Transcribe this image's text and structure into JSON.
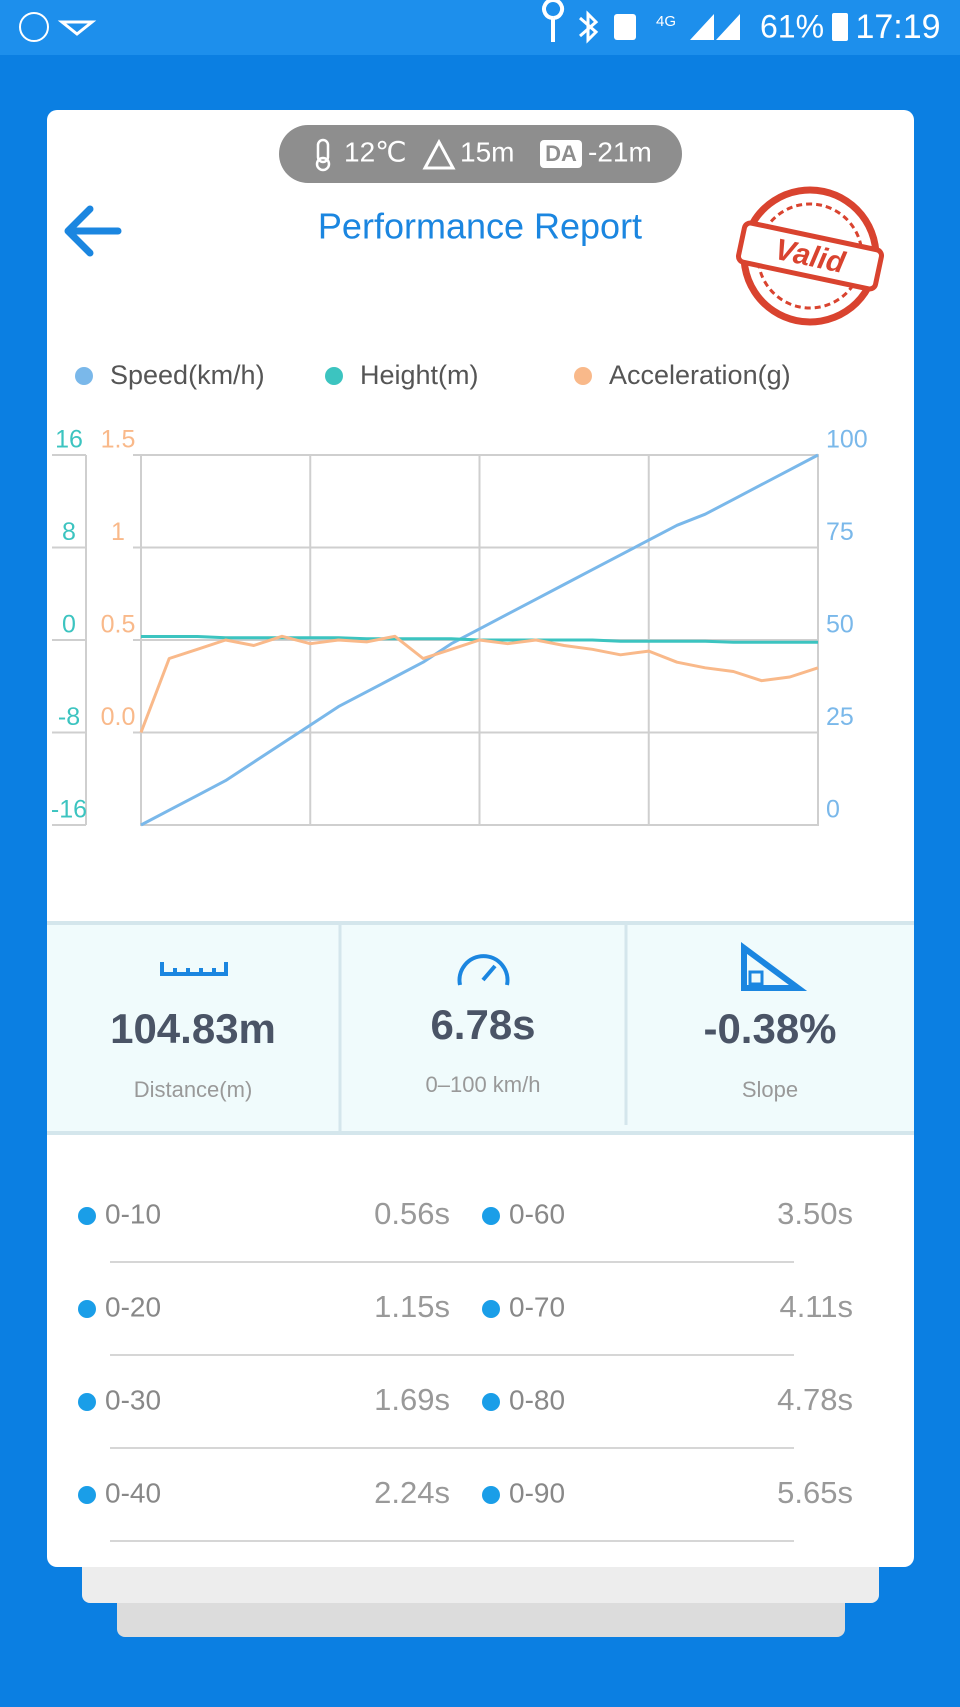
{
  "status": {
    "network": "4G",
    "battery": "61%",
    "time": "17:19"
  },
  "conditions": {
    "temperature": "12℃",
    "altitude": "15m",
    "da_label": "DA",
    "density_altitude": "-21m"
  },
  "header": {
    "title": "Performance Report",
    "stamp": "Valid"
  },
  "chart_data": {
    "type": "line",
    "ylim": [
      -16,
      16
    ],
    "yticks": [
      -16,
      -8,
      0,
      8,
      16
    ],
    "y2lim": [
      0,
      100
    ],
    "y2ticks": [
      0,
      25,
      50,
      75,
      100
    ],
    "y3lim": [
      -0.5,
      1.5
    ],
    "y3ticks": [
      {
        "value": 0,
        "label": "0.0"
      },
      0.5,
      1,
      1.5
    ],
    "grid": true,
    "series": [
      {
        "name": "Speed(km/h)",
        "color": "#7ab8ea",
        "axis": "y2",
        "values": [
          0,
          4,
          8,
          12,
          17,
          22,
          27,
          32,
          36,
          40,
          44,
          49,
          53,
          57,
          61,
          65,
          69,
          73,
          77,
          81,
          84,
          88,
          92,
          96,
          100
        ]
      },
      {
        "name": "Height(m)",
        "color": "#3cc4c0",
        "axis": "y",
        "values": [
          0.3,
          0.3,
          0.3,
          0.2,
          0.2,
          0.2,
          0.2,
          0.2,
          0.1,
          0.1,
          0.1,
          0.1,
          0,
          0,
          0,
          0,
          0,
          -0.1,
          -0.1,
          -0.1,
          -0.1,
          -0.2,
          -0.2,
          -0.2,
          -0.2
        ]
      },
      {
        "name": "Acceleration(g)",
        "color": "#f9b98a",
        "axis": "y3",
        "values": [
          0,
          0.4,
          0.45,
          0.5,
          0.47,
          0.52,
          0.48,
          0.5,
          0.49,
          0.52,
          0.4,
          0.45,
          0.5,
          0.48,
          0.5,
          0.47,
          0.45,
          0.42,
          0.44,
          0.38,
          0.35,
          0.33,
          0.28,
          0.3,
          0.35
        ]
      }
    ]
  },
  "stats": [
    {
      "value": "104.83m",
      "label": "Distance(m)"
    },
    {
      "value": "6.78s",
      "label": "0–100 km/h"
    },
    {
      "value": "-0.38%",
      "label": "Slope"
    }
  ],
  "splits": [
    {
      "label": "0-10",
      "time": "0.56s"
    },
    {
      "label": "0-20",
      "time": "1.15s"
    },
    {
      "label": "0-30",
      "time": "1.69s"
    },
    {
      "label": "0-40",
      "time": "2.24s"
    },
    {
      "label": "0-60",
      "time": "3.50s"
    },
    {
      "label": "0-70",
      "time": "4.11s"
    },
    {
      "label": "0-80",
      "time": "4.78s"
    },
    {
      "label": "0-90",
      "time": "5.65s"
    }
  ]
}
